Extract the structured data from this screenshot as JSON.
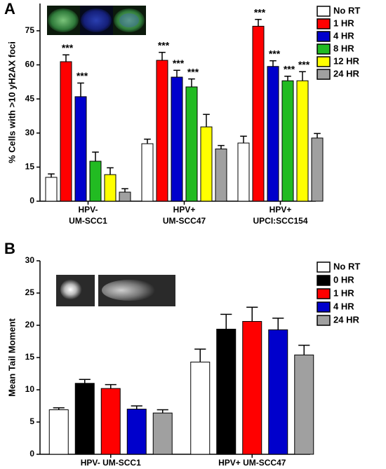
{
  "chart_data": [
    {
      "type": "bar",
      "panel": "A",
      "ylabel": "% Cells with >10 yH2AX foci",
      "categories": [
        "HPV-\nUM-SCC1",
        "HPV+\nUM-SCC47",
        "HPV+\nUPCI:SCC154"
      ],
      "ylim": [
        0,
        87
      ],
      "yticks": [
        0,
        15,
        30,
        45,
        60,
        75
      ],
      "legend": "right",
      "series": [
        {
          "name": "No RT",
          "color": "#ffffff",
          "values": [
            10.5,
            25.3,
            25.6
          ],
          "errors": [
            1.5,
            2,
            3
          ],
          "annotations": [
            null,
            null,
            null
          ]
        },
        {
          "name": "1 HR",
          "color": "#ff0000",
          "values": [
            61.4,
            62,
            77
          ],
          "errors": [
            3,
            3.5,
            3
          ],
          "annotations": [
            "***",
            "***",
            "***"
          ]
        },
        {
          "name": "4 HR",
          "color": "#0000cc",
          "values": [
            46,
            54.6,
            59.3
          ],
          "errors": [
            6,
            3,
            2.5
          ],
          "annotations": [
            "***",
            "***",
            "***"
          ]
        },
        {
          "name": "8 HR",
          "color": "#22bb22",
          "values": [
            17.6,
            50.3,
            53
          ],
          "errors": [
            4,
            3.5,
            2
          ],
          "annotations": [
            null,
            "***",
            "***"
          ]
        },
        {
          "name": "12 HR",
          "color": "#ffff00",
          "values": [
            11.7,
            32.7,
            53
          ],
          "errors": [
            3,
            5.5,
            4
          ],
          "annotations": [
            null,
            null,
            "***"
          ]
        },
        {
          "name": "24 HR",
          "color": "#a0a0a0",
          "values": [
            4,
            23,
            27.8
          ],
          "errors": [
            1.5,
            1.5,
            2
          ],
          "annotations": [
            null,
            null,
            null
          ]
        }
      ]
    },
    {
      "type": "bar",
      "panel": "B",
      "ylabel": "Mean Tail Moment",
      "categories": [
        "HPV- UM-SCC1",
        "HPV+ UM-SCC47"
      ],
      "ylim": [
        0,
        30
      ],
      "yticks": [
        0,
        5,
        10,
        15,
        20,
        25,
        30
      ],
      "legend": "right",
      "series": [
        {
          "name": "No RT",
          "color": "#ffffff",
          "values": [
            6.9,
            14.3
          ],
          "errors": [
            0.3,
            2
          ]
        },
        {
          "name": "0 HR",
          "color": "#000000",
          "values": [
            11,
            19.4
          ],
          "errors": [
            0.6,
            2.3
          ]
        },
        {
          "name": "1 HR",
          "color": "#ff0000",
          "values": [
            10.2,
            20.6
          ],
          "errors": [
            0.6,
            2.2
          ]
        },
        {
          "name": "4 HR",
          "color": "#0000cc",
          "values": [
            7,
            19.3
          ],
          "errors": [
            0.5,
            1.8
          ]
        },
        {
          "name": "24 HR",
          "color": "#a0a0a0",
          "values": [
            6.4,
            15.4
          ],
          "errors": [
            0.5,
            1.5
          ]
        }
      ]
    }
  ]
}
